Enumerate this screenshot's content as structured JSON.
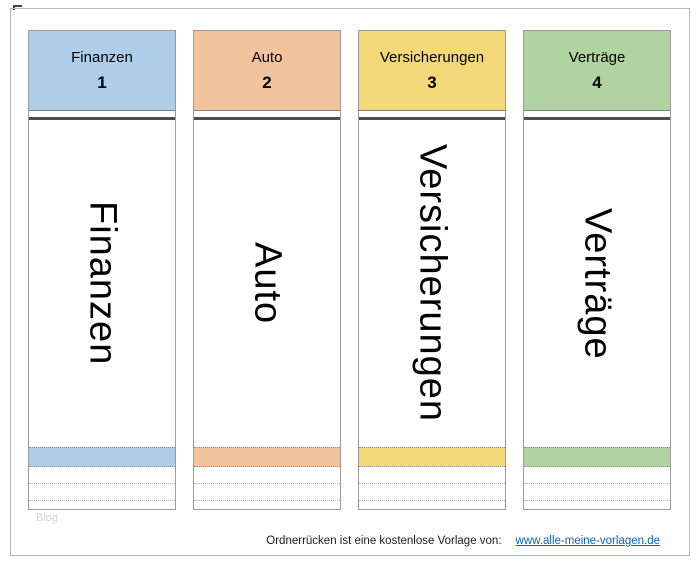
{
  "labels": [
    {
      "title": "Finanzen",
      "number": "1",
      "spine_text": "Finanzen",
      "color": "#aecde8"
    },
    {
      "title": "Auto",
      "number": "2",
      "spine_text": "Auto",
      "color": "#f2c49d"
    },
    {
      "title": "Versicherungen",
      "number": "3",
      "spine_text": "Versicherungen",
      "color": "#f2d878"
    },
    {
      "title": "Verträge",
      "number": "4",
      "spine_text": "Verträge",
      "color": "#b1d3a2"
    }
  ],
  "footer": {
    "text": "Ordnerrücken ist eine kostenlose Vorlage von:",
    "link": "www.alle-meine-vorlagen.de",
    "link_color": "#0563c1"
  },
  "watermark": "Blog"
}
